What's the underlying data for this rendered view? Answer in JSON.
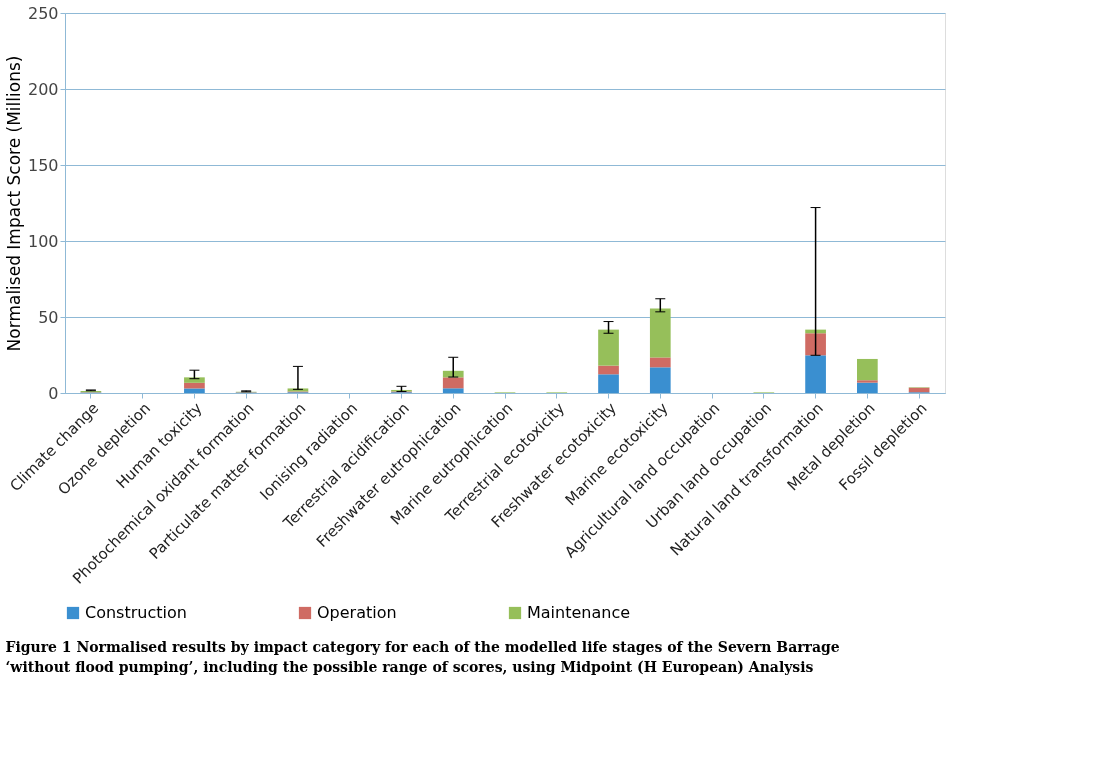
{
  "chart_data": {
    "type": "bar",
    "stacked": true,
    "ylabel": "Normalised Impact Score (Millions)",
    "title": "Figure 1 Normalised results by impact category for each of the modelled life stages of the Severn Barrage ‘without flood pumping’, including the possible range of scores, using Midpoint (H European) Analysis",
    "categories": [
      "Climate change",
      "Ozone depletion",
      "Human toxicity",
      "Photochemical oxidant formation",
      "Particulate matter formation",
      "Ionising radiation",
      "Terrestrial acidification",
      "Freshwater eutrophication",
      "Marine eutrophication",
      "Terrestrial ecotoxicity",
      "Freshwater ecotoxicity",
      "Marine ecotoxicity",
      "Agricultural land occupation",
      "Urban land occupation",
      "Natural land transformation",
      "Metal depletion",
      "Fossil depletion"
    ],
    "series": [
      {
        "name": "Construction",
        "color": "#3a8fd0",
        "values": [
          0.3,
          0,
          3,
          0.3,
          0.5,
          0,
          0.5,
          3.1,
          null,
          null,
          12.3,
          16.9,
          0,
          null,
          24.8,
          6.8,
          0.5
        ]
      },
      {
        "name": "Operation",
        "color": "#cf6b63",
        "values": [
          0.2,
          0,
          3.7,
          0.2,
          0.5,
          0,
          0.5,
          7.2,
          null,
          null,
          5.7,
          6.5,
          0,
          null,
          14.5,
          1.6,
          3
        ]
      },
      {
        "name": "Maintenance",
        "color": "#96bf5a",
        "values": [
          0.8,
          0,
          3.6,
          0.3,
          2,
          0,
          1,
          4.3,
          0.4,
          0.4,
          23.7,
          32.2,
          0,
          0.4,
          2.4,
          14,
          0.3
        ],
        "errors": [
          [
            1.5,
            2
          ],
          null,
          [
            9.4,
            15
          ],
          [
            0.8,
            1.4
          ],
          [
            2.4,
            17.5
          ],
          null,
          [
            1,
            4.4
          ],
          [
            10.5,
            23.5
          ],
          null,
          null,
          [
            39.3,
            47
          ],
          [
            53.4,
            62
          ],
          null,
          null,
          [
            24.8,
            122
          ],
          null,
          null
        ]
      }
    ],
    "ylim": [
      0,
      250
    ],
    "yticks": [
      0,
      50,
      100,
      150,
      200,
      250
    ],
    "grid": "y",
    "legend": "bottom"
  }
}
